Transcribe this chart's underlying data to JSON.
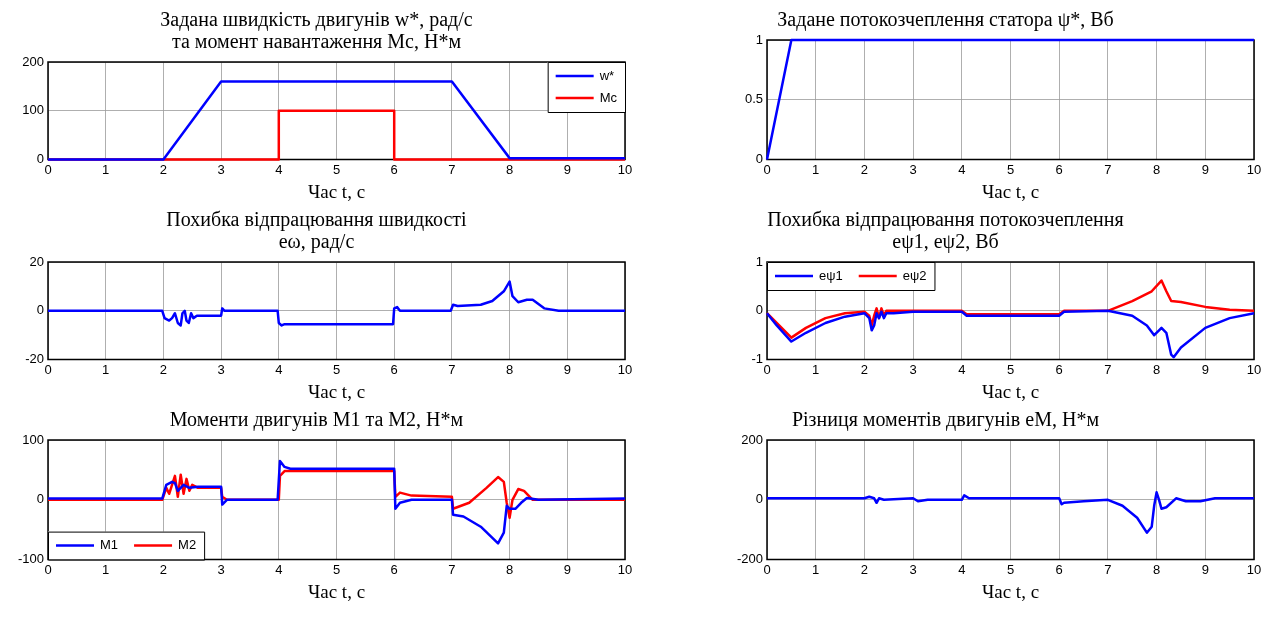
{
  "chart_data": [
    {
      "type": "line",
      "title": "Задана швидкість двигунів w*, рад/с\nта момент навантаження Мс, Н*м",
      "xlabel": "Час t, с",
      "xlim": [
        0,
        10
      ],
      "xticks": [
        0,
        1,
        2,
        3,
        4,
        5,
        6,
        7,
        8,
        9,
        10
      ],
      "ylim": [
        0,
        200
      ],
      "yticks": [
        0,
        100,
        200
      ],
      "grid": true,
      "legend": "top right",
      "marker": "none",
      "line_style": "solid",
      "series": [
        {
          "name": "w*",
          "color": "#0000ff",
          "x": [
            0,
            2,
            3,
            7,
            8,
            10
          ],
          "values": [
            0,
            0,
            160,
            160,
            3,
            3
          ]
        },
        {
          "name": "Mc",
          "color": "#ff0000",
          "x": [
            0,
            4,
            4,
            6,
            6,
            10
          ],
          "values": [
            0,
            0,
            100,
            100,
            0,
            0
          ]
        }
      ]
    },
    {
      "type": "line",
      "title": "Задане потокозчеплення статора ψ*, Вб",
      "xlabel": "Час t, с",
      "xlim": [
        0,
        10
      ],
      "xticks": [
        0,
        1,
        2,
        3,
        4,
        5,
        6,
        7,
        8,
        9,
        10
      ],
      "ylim": [
        0,
        1
      ],
      "yticks": [
        0,
        0.5,
        1
      ],
      "grid": true,
      "marker": "none",
      "line_style": "solid",
      "series": [
        {
          "color": "#0000ff",
          "x": [
            0,
            0.5,
            10
          ],
          "values": [
            0,
            1,
            1
          ]
        }
      ]
    },
    {
      "type": "line",
      "title": "Похибка відпрацювання швидкості\neω, рад/с",
      "xlabel": "Час t, с",
      "xlim": [
        0,
        10
      ],
      "xticks": [
        0,
        1,
        2,
        3,
        4,
        5,
        6,
        7,
        8,
        9,
        10
      ],
      "ylim": [
        -20,
        20
      ],
      "yticks": [
        -20,
        0,
        20
      ],
      "grid": true,
      "marker": "none",
      "line_style": "solid",
      "series": [
        {
          "color": "#0000ff",
          "x": [
            0,
            1.98,
            2.02,
            2.1,
            2.15,
            2.2,
            2.25,
            2.3,
            2.33,
            2.37,
            2.4,
            2.44,
            2.48,
            2.52,
            2.58,
            3.0,
            3.02,
            3.06,
            3.98,
            4.0,
            4.05,
            4.1,
            5.98,
            6.0,
            6.05,
            6.1,
            6.98,
            7.02,
            7.1,
            7.5,
            7.7,
            7.9,
            8.0,
            8.05,
            8.15,
            8.3,
            8.4,
            8.6,
            8.85,
            10
          ],
          "values": [
            0,
            0,
            -3,
            -4,
            -3,
            -1,
            -5,
            -6,
            -1,
            0,
            -4,
            -5,
            -1,
            -3,
            -2,
            -2,
            1,
            0,
            0,
            -5,
            -6,
            -5.5,
            -5.5,
            1,
            1.5,
            0,
            0,
            2.5,
            2,
            2.5,
            4,
            8,
            12,
            6,
            3.5,
            4.5,
            4.5,
            1,
            0,
            0
          ]
        }
      ]
    },
    {
      "type": "line",
      "title": "Похибка відпрацювання потокозчеплення\neψ1, eψ2, Вб",
      "xlabel": "Час t, с",
      "xlim": [
        0,
        10
      ],
      "xticks": [
        0,
        1,
        2,
        3,
        4,
        5,
        6,
        7,
        8,
        9,
        10
      ],
      "ylim": [
        -1,
        1
      ],
      "yticks": [
        -1,
        0,
        1
      ],
      "grid": true,
      "legend": "top left",
      "marker": "none",
      "line_style": "solid",
      "series": [
        {
          "name": "eψ1",
          "color": "#0000ff",
          "x": [
            0,
            0.2,
            0.5,
            0.8,
            1.2,
            1.6,
            2.0,
            2.1,
            2.15,
            2.2,
            2.25,
            2.3,
            2.35,
            2.4,
            2.45,
            2.6,
            3,
            4,
            4.1,
            6,
            6.1,
            7,
            7.5,
            7.8,
            7.95,
            8.05,
            8.1,
            8.2,
            8.3,
            8.35,
            8.5,
            9,
            9.5,
            10
          ],
          "values": [
            -0.05,
            -0.3,
            -0.63,
            -0.45,
            -0.25,
            -0.12,
            -0.05,
            -0.15,
            -0.4,
            -0.3,
            -0.05,
            -0.15,
            -0.02,
            -0.15,
            -0.05,
            -0.05,
            -0.02,
            -0.02,
            -0.1,
            -0.1,
            -0.02,
            0,
            -0.1,
            -0.3,
            -0.5,
            -0.4,
            -0.35,
            -0.45,
            -0.9,
            -0.95,
            -0.75,
            -0.35,
            -0.15,
            -0.05
          ]
        },
        {
          "name": "eψ2",
          "color": "#ff0000",
          "x": [
            0,
            0.5,
            0.8,
            1.2,
            1.6,
            2.0,
            2.1,
            2.15,
            2.2,
            2.25,
            2.3,
            2.35,
            2.4,
            2.45,
            3,
            4,
            4.1,
            6,
            6.1,
            7,
            7.5,
            7.9,
            8.1,
            8.2,
            8.3,
            8.5,
            9,
            9.5,
            10
          ],
          "values": [
            -0.05,
            -0.55,
            -0.35,
            -0.15,
            -0.05,
            -0.02,
            -0.1,
            -0.3,
            -0.1,
            0.05,
            -0.15,
            0.05,
            -0.1,
            0,
            0,
            0,
            -0.07,
            -0.07,
            0,
            0,
            0.2,
            0.4,
            0.62,
            0.4,
            0.2,
            0.18,
            0.08,
            0.02,
            0
          ]
        }
      ]
    },
    {
      "type": "line",
      "title": "Моменти двигунів М1 та М2, Н*м",
      "xlabel": "Час t, с",
      "xlim": [
        0,
        10
      ],
      "xticks": [
        0,
        1,
        2,
        3,
        4,
        5,
        6,
        7,
        8,
        9,
        10
      ],
      "ylim": [
        -100,
        100
      ],
      "yticks": [
        -100,
        0,
        100
      ],
      "grid": true,
      "legend": "bottom left",
      "marker": "none",
      "line_style": "solid",
      "series": [
        {
          "name": "M1",
          "color": "#0000ff",
          "x": [
            0,
            1.98,
            2.05,
            2.15,
            2.2,
            2.25,
            2.35,
            2.45,
            2.6,
            3,
            3.02,
            3.1,
            3.98,
            4.02,
            4.1,
            4.2,
            6,
            6.02,
            6.1,
            6.3,
            7,
            7.02,
            7.2,
            7.5,
            7.8,
            7.9,
            7.95,
            8.0,
            8.1,
            8.2,
            8.3,
            8.5,
            10
          ],
          "values": [
            2,
            2,
            25,
            30,
            28,
            15,
            25,
            20,
            22,
            22,
            -8,
            0,
            0,
            65,
            55,
            52,
            52,
            -15,
            -5,
            0,
            0,
            -25,
            -28,
            -45,
            -73,
            -55,
            -10,
            -15,
            -15,
            -5,
            3,
            0,
            2
          ]
        },
        {
          "name": "M2",
          "color": "#ff0000",
          "x": [
            0,
            1.98,
            2.05,
            2.1,
            2.2,
            2.25,
            2.3,
            2.35,
            2.4,
            2.45,
            2.5,
            2.6,
            3,
            3.02,
            3.1,
            4,
            4.02,
            4.1,
            6,
            6.02,
            6.1,
            6.3,
            7,
            7.02,
            7.3,
            7.6,
            7.8,
            7.9,
            7.95,
            8.0,
            8.05,
            8.15,
            8.25,
            8.4,
            8.6,
            10
          ],
          "values": [
            0,
            0,
            20,
            10,
            40,
            5,
            42,
            10,
            35,
            15,
            25,
            20,
            20,
            5,
            0,
            0,
            40,
            48,
            48,
            5,
            12,
            7,
            5,
            -15,
            -5,
            20,
            38,
            30,
            -5,
            -30,
            0,
            18,
            15,
            0,
            0,
            0
          ]
        }
      ]
    },
    {
      "type": "line",
      "title": "Різниця моментів двигунів еМ, Н*м",
      "xlabel": "Час t, с",
      "xlim": [
        0,
        10
      ],
      "xticks": [
        0,
        1,
        2,
        3,
        4,
        5,
        6,
        7,
        8,
        9,
        10
      ],
      "ylim": [
        -200,
        200
      ],
      "yticks": [
        -200,
        0,
        200
      ],
      "grid": true,
      "marker": "none",
      "line_style": "solid",
      "series": [
        {
          "color": "#0000ff",
          "x": [
            0,
            2,
            2.1,
            2.2,
            2.25,
            2.3,
            2.4,
            3,
            3.1,
            3.3,
            4,
            4.05,
            4.15,
            6,
            6.05,
            6.1,
            6.5,
            7,
            7.3,
            7.6,
            7.8,
            7.9,
            7.95,
            8.0,
            8.05,
            8.1,
            8.2,
            8.4,
            8.6,
            8.9,
            9.2,
            10
          ],
          "values": [
            5,
            5,
            10,
            5,
            -10,
            5,
            0,
            5,
            -5,
            0,
            0,
            15,
            5,
            5,
            -15,
            -10,
            -5,
            0,
            -20,
            -60,
            -110,
            -90,
            -20,
            25,
            0,
            -30,
            -25,
            5,
            -5,
            -5,
            5,
            5
          ]
        }
      ]
    }
  ]
}
